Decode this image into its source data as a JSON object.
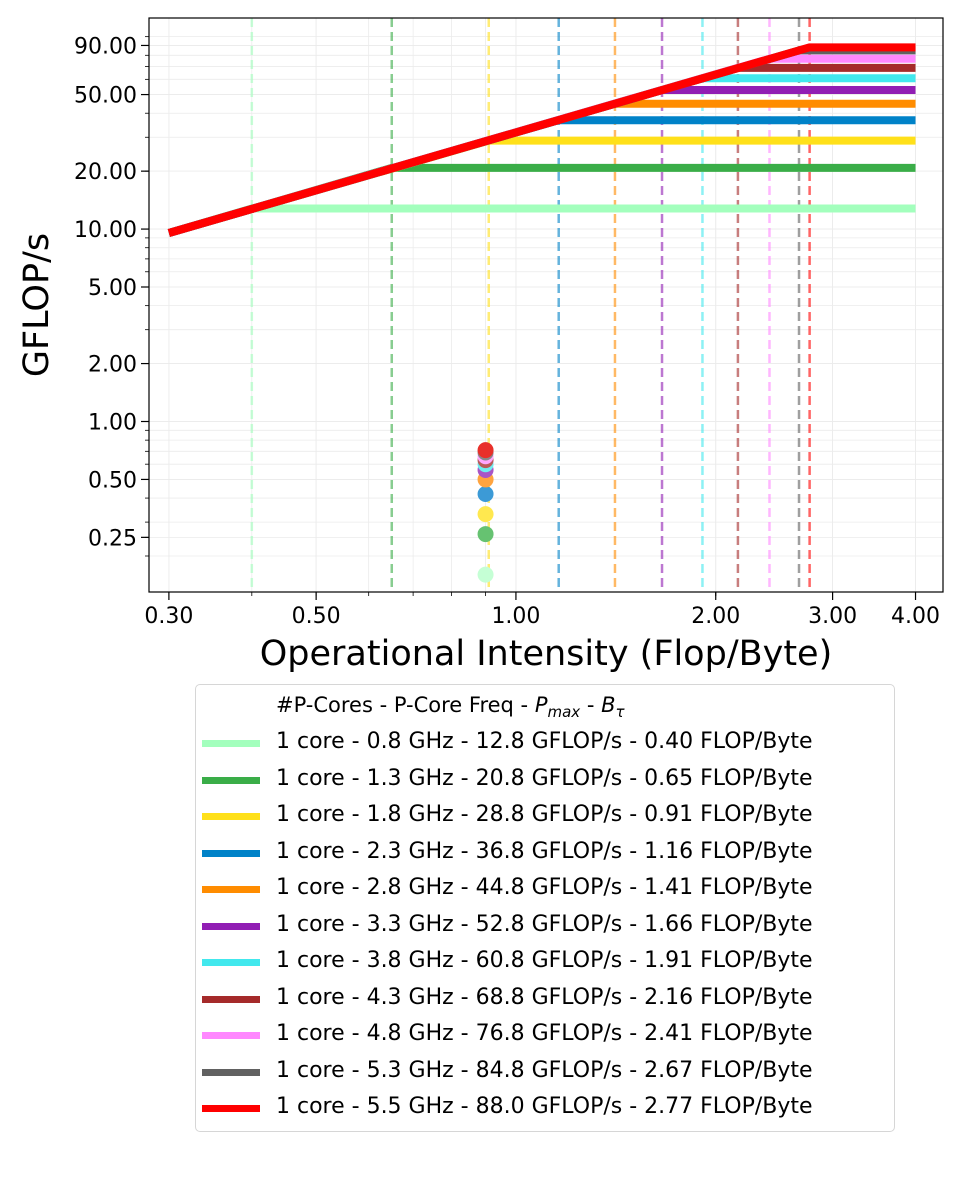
{
  "chart_data": {
    "type": "line",
    "subtype": "roofline",
    "xlabel": "Operational Intensity (Flop/Byte)",
    "ylabel": "GFLOP/s",
    "xscale": "log",
    "yscale": "log",
    "xlim": [
      0.28,
      4.4
    ],
    "ylim": [
      0.13,
      125
    ],
    "x_ticks": [
      0.3,
      0.5,
      1.0,
      2.0,
      3.0,
      4.0
    ],
    "x_tick_labels": [
      "0.30",
      "0.50",
      "1.00",
      "2.00",
      "3.00",
      "4.00"
    ],
    "y_ticks": [
      0.25,
      0.5,
      1,
      2,
      5,
      10,
      20,
      50,
      90
    ],
    "y_tick_labels": [
      "0.25",
      "0.50",
      "1.00",
      "2.00",
      "5.00",
      "10.00",
      "20.00",
      "50.00",
      "90.00"
    ],
    "grid": true,
    "memory_bandwidth_slope_gflops_per_flop_byte": 31.8,
    "roofline_x_range": [
      0.3,
      4.0
    ],
    "series": [
      {
        "name": "1 core - 0.8 GHz - 12.8 GFLOP/s - 0.40 FLOP/Byte",
        "color": "#a3ffbd",
        "peak": 12.8,
        "ridge": 0.4,
        "measured_x": 0.9,
        "measured_y": 0.16,
        "dot_color": "#c5ffd5"
      },
      {
        "name": "1 core - 1.3 GHz - 20.8 GFLOP/s - 0.65 FLOP/Byte",
        "color": "#3aad48",
        "peak": 20.8,
        "ridge": 0.65,
        "measured_x": 0.9,
        "measured_y": 0.26,
        "dot_color": "#66c271"
      },
      {
        "name": "1 core - 1.8 GHz - 28.8 GFLOP/s - 0.91 FLOP/Byte",
        "color": "#ffe01a",
        "peak": 28.8,
        "ridge": 0.91,
        "measured_x": 0.9,
        "measured_y": 0.33,
        "dot_color": "#ffe84f"
      },
      {
        "name": "1 core - 2.3 GHz - 36.8 GFLOP/s - 1.16 FLOP/Byte",
        "color": "#0082c8",
        "peak": 36.8,
        "ridge": 1.16,
        "measured_x": 0.9,
        "measured_y": 0.42,
        "dot_color": "#3c9ad6"
      },
      {
        "name": "1 core - 2.8 GHz - 44.8 GFLOP/s - 1.41 FLOP/Byte",
        "color": "#ff8c00",
        "peak": 44.8,
        "ridge": 1.41,
        "measured_x": 0.9,
        "measured_y": 0.5,
        "dot_color": "#ffa43f"
      },
      {
        "name": "1 core - 3.3 GHz - 52.8 GFLOP/s - 1.66 FLOP/Byte",
        "color": "#911eb4",
        "peak": 52.8,
        "ridge": 1.66,
        "measured_x": 0.9,
        "measured_y": 0.56,
        "dot_color": "#a855c6"
      },
      {
        "name": "1 core - 3.8 GHz - 60.8 GFLOP/s - 1.91 FLOP/Byte",
        "color": "#42e8ed",
        "peak": 60.8,
        "ridge": 1.91,
        "measured_x": 0.9,
        "measured_y": 0.6,
        "dot_color": "#6feef1"
      },
      {
        "name": "1 core - 4.3 GHz - 68.8 GFLOP/s - 2.16 FLOP/Byte",
        "color": "#a52a2a",
        "peak": 68.8,
        "ridge": 2.16,
        "measured_x": 0.9,
        "measured_y": 0.63,
        "dot_color": "#bb5a5a"
      },
      {
        "name": "1 core - 4.8 GHz - 76.8 GFLOP/s - 2.41 FLOP/Byte",
        "color": "#ff88ff",
        "peak": 76.8,
        "ridge": 2.41,
        "measured_x": 0.9,
        "measured_y": 0.66,
        "dot_color": "#ffa6ff"
      },
      {
        "name": "1 core - 5.3 GHz - 84.8 GFLOP/s - 2.67 FLOP/Byte",
        "color": "#616161",
        "peak": 84.8,
        "ridge": 2.67,
        "measured_x": 0.9,
        "measured_y": 0.69,
        "dot_color": "#888888"
      },
      {
        "name": "1 core - 5.5 GHz - 88.0 GFLOP/s - 2.77 FLOP/Byte",
        "color": "#ff0000",
        "peak": 88.0,
        "ridge": 2.77,
        "measured_x": 0.9,
        "measured_y": 0.71,
        "dot_color": "#e8302a"
      }
    ]
  },
  "legend": {
    "header_prefix": "#P-Cores - P-Core Freq - ",
    "header_pmax_main": "P",
    "header_pmax_sub": "max",
    "header_sep": " - ",
    "header_btau_main": "B",
    "header_btau_sub": "τ",
    "placement": "below-plot"
  }
}
